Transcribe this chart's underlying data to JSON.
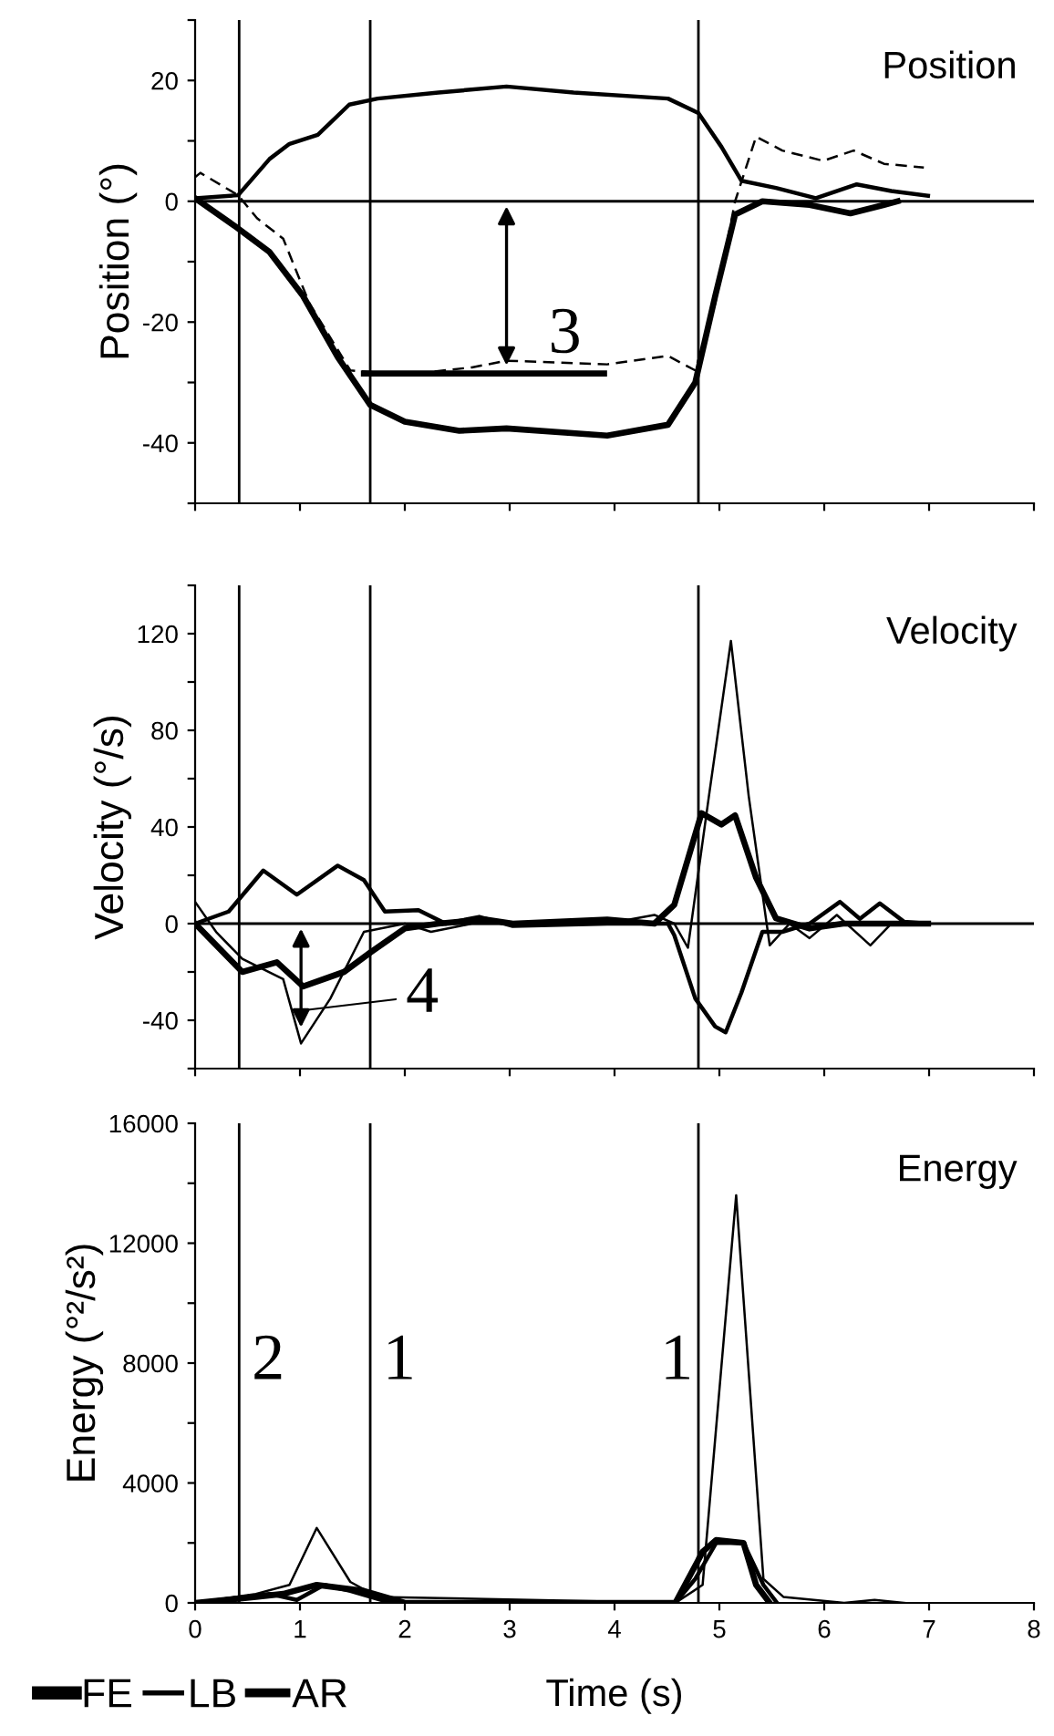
{
  "chart_data": [
    {
      "type": "line",
      "title": "Position",
      "ylabel": "Position (°)",
      "xlim": [
        0,
        8
      ],
      "xticks": [
        {
          "value": 0,
          "label": null
        },
        {
          "value": 1,
          "label": null
        },
        {
          "value": 2,
          "label": null
        },
        {
          "value": 3,
          "label": null
        },
        {
          "value": 4,
          "label": null
        },
        {
          "value": 5,
          "label": null
        },
        {
          "value": 6,
          "label": null
        },
        {
          "value": 7,
          "label": null
        },
        {
          "value": 8,
          "label": null
        }
      ],
      "ylim": [
        -50,
        30
      ],
      "yticks": [
        {
          "value": -50,
          "label": null
        },
        -40,
        {
          "value": -30,
          "label": null
        },
        -20,
        {
          "value": -10,
          "label": null
        },
        0,
        {
          "value": 10,
          "label": null
        },
        20,
        {
          "value": 30,
          "label": null
        }
      ],
      "tick_labels": "y",
      "grid": false,
      "legend": false,
      "series": [
        {
          "color": "#000000",
          "line_style": "solid",
          "x": [
            0,
            0.41,
            0.71,
            1.03,
            1.36,
            1.67,
            2.0,
            2.52,
            2.97,
            3.93,
            4.51,
            4.77,
            4.96,
            5.15,
            5.41,
            5.86,
            6.25,
            6.57,
            6.7
          ],
          "values": [
            0.5,
            -4.5,
            -8.4,
            -15.7,
            -25.8,
            -33.7,
            -36.5,
            -38,
            -37.6,
            -38.8,
            -37,
            -30,
            -15.7,
            -2.2,
            0,
            -0.6,
            -2,
            -0.6,
            0
          ]
        },
        {
          "color": "#000000",
          "line_style": "dashed",
          "x": [
            0,
            0.05,
            0.41,
            0.59,
            0.84,
            1.09,
            1.48,
            2.0,
            2.64,
            2.97,
            3.93,
            4.51,
            4.77,
            4.96,
            5.15,
            5.35,
            5.6,
            5.99,
            6.28,
            6.57,
            6.95
          ],
          "values": [
            4,
            4.7,
            1,
            -2.8,
            -6.2,
            -16.9,
            -28,
            -28.7,
            -27.5,
            -26.4,
            -27,
            -25.6,
            -28,
            -16.9,
            0,
            10.7,
            8.4,
            6.7,
            8.4,
            6.2,
            5.6
          ]
        },
        {
          "color": "#000000",
          "line_style": "solid",
          "x": [
            0,
            0.41,
            0.71,
            0.9,
            1.17,
            1.47,
            1.74,
            2.32,
            2.97,
            3.61,
            4.51,
            4.8,
            5.02,
            5.21,
            5.54,
            5.92,
            6.31,
            6.64,
            6.99
          ],
          "values": [
            0.5,
            1,
            7,
            9.5,
            11,
            16,
            17,
            18,
            19,
            18,
            17,
            14.6,
            9,
            3.4,
            2.2,
            0.5,
            2.8,
            1.7,
            0.9
          ]
        },
        {
          "color": "#000000",
          "line_style": "solid",
          "x": [
            1.61,
            3.9
          ],
          "values": [
            -28.5,
            -28.5
          ]
        }
      ],
      "ref_lines": [
        {
          "axis": "y",
          "value": 0
        },
        {
          "axis": "x",
          "value": 0.42
        },
        {
          "axis": "x",
          "value": 1.67
        },
        {
          "axis": "x",
          "value": 4.8
        }
      ],
      "annotations": [
        {
          "text": "3",
          "x": 2.97,
          "y": -28
        }
      ]
    },
    {
      "type": "line",
      "title": "Velocity",
      "ylabel": "Velocity (°/s)",
      "xlim": [
        0,
        8
      ],
      "xticks": [
        {
          "value": 0,
          "label": null
        },
        {
          "value": 1,
          "label": null
        },
        {
          "value": 2,
          "label": null
        },
        {
          "value": 3,
          "label": null
        },
        {
          "value": 4,
          "label": null
        },
        {
          "value": 5,
          "label": null
        },
        {
          "value": 6,
          "label": null
        },
        {
          "value": 7,
          "label": null
        },
        {
          "value": 8,
          "label": null
        }
      ],
      "ylim": [
        -60,
        140
      ],
      "yticks": [
        {
          "value": -60,
          "label": null
        },
        -40,
        {
          "value": -20,
          "label": null
        },
        0,
        {
          "value": 20,
          "label": null
        },
        40,
        {
          "value": 60,
          "label": null
        },
        80,
        {
          "value": 100,
          "label": null
        },
        120,
        {
          "value": 140,
          "label": null
        }
      ],
      "tick_labels": "y",
      "grid": false,
      "legend": false,
      "series": [
        {
          "color": "#000000",
          "line_style": "solid",
          "x": [
            0,
            0.45,
            0.78,
            1.03,
            1.42,
            1.67,
            2.0,
            2.32,
            2.77,
            3.03,
            3.93,
            4.38,
            4.57,
            4.83,
            5.02,
            5.15,
            5.35,
            5.54,
            5.86,
            6.18,
            6.99
          ],
          "values": [
            0,
            -20,
            -16,
            -26,
            -20,
            -12,
            -2,
            0,
            1.7,
            0,
            1.7,
            0,
            7.8,
            45.7,
            41,
            44.8,
            19,
            2.2,
            -2,
            0,
            0
          ]
        },
        {
          "color": "#000000",
          "line_style": "solid",
          "x": [
            0,
            0.2,
            0.45,
            0.84,
            1.01,
            1.29,
            1.61,
            2.0,
            2.25,
            2.64,
            3.93,
            4.38,
            4.57,
            4.7,
            4.9,
            5.11,
            5.28,
            5.48,
            5.67,
            5.86,
            6.12,
            6.44,
            6.64,
            6.95
          ],
          "values": [
            9,
            -3.4,
            -14.6,
            -23,
            -49.6,
            -31,
            -3.4,
            0,
            -3.4,
            0,
            0,
            3.6,
            0,
            -10,
            52.7,
            117,
            52.7,
            -9,
            0,
            -6,
            3.6,
            -9,
            0,
            0
          ]
        },
        {
          "color": "#000000",
          "line_style": "solid",
          "x": [
            0,
            0.32,
            0.65,
            0.97,
            1.36,
            1.61,
            1.81,
            2.13,
            2.39,
            2.71,
            3.03,
            3.93,
            4.51,
            4.57,
            4.77,
            4.96,
            5.06,
            5.21,
            5.41,
            5.6,
            5.86,
            6.15,
            6.34,
            6.53,
            6.76,
            6.99
          ],
          "values": [
            0,
            5,
            22,
            12,
            24,
            18,
            5,
            5.6,
            0,
            2.8,
            -1,
            0,
            0,
            -4.8,
            -31,
            -42.6,
            -45,
            -28.6,
            -3.4,
            -3.4,
            0,
            9,
            2,
            8.4,
            0.8,
            0
          ]
        }
      ],
      "ref_lines": [
        {
          "axis": "y",
          "value": 0
        },
        {
          "axis": "x",
          "value": 0.42
        },
        {
          "axis": "x",
          "value": 1.67
        },
        {
          "axis": "x",
          "value": 4.8
        }
      ],
      "annotations": [
        {
          "text": "4",
          "x": 1.01,
          "y": -45
        }
      ]
    },
    {
      "type": "line",
      "title": "Energy",
      "ylabel": "Energy (°²/s²)",
      "xlabel": "Time (s)",
      "xlim": [
        0,
        8
      ],
      "xticks": [
        0,
        1,
        2,
        3,
        4,
        5,
        6,
        7,
        8
      ],
      "ylim": [
        0,
        16000
      ],
      "yticks": [
        0,
        {
          "value": 2000,
          "label": null
        },
        4000,
        {
          "value": 6000,
          "label": null
        },
        8000,
        {
          "value": 10000,
          "label": null
        },
        12000,
        {
          "value": 14000,
          "label": null
        },
        16000
      ],
      "grid": false,
      "legend": "bottom left",
      "series": [
        {
          "name": "FE",
          "color": "#000000",
          "line_style": "solid",
          "x": [
            0,
            0.58,
            0.84,
            1.16,
            1.61,
            2.0,
            4.58,
            4.84,
            4.97,
            5.23,
            5.35,
            5.48
          ],
          "values": [
            0,
            200,
            300,
            600,
            400,
            0,
            0,
            1700,
            2100,
            2000,
            600,
            0
          ]
        },
        {
          "name": "LB",
          "color": "#000000",
          "line_style": "solid",
          "x": [
            0,
            0.58,
            0.9,
            1.16,
            1.48,
            1.74,
            4.58,
            4.84,
            5.16,
            5.42,
            5.61,
            6.19,
            6.48,
            6.77
          ],
          "values": [
            0,
            300,
            600,
            2500,
            700,
            200,
            0,
            600,
            13600,
            800,
            200,
            0,
            100,
            0
          ]
        },
        {
          "name": "AR",
          "color": "#000000",
          "line_style": "solid",
          "x": [
            0,
            0.71,
            0.97,
            1.23,
            1.48,
            1.87,
            4.58,
            4.77,
            4.97,
            5.23,
            5.42,
            5.55
          ],
          "values": [
            0,
            300,
            100,
            600,
            400,
            0,
            0,
            800,
            2000,
            2000,
            600,
            0
          ]
        }
      ],
      "ref_lines": [
        {
          "axis": "x",
          "value": 0.42
        },
        {
          "axis": "x",
          "value": 1.67
        },
        {
          "axis": "x",
          "value": 4.8
        }
      ],
      "annotations": [
        {
          "text": "2",
          "x": 0.42,
          "y": 7000
        },
        {
          "text": "1",
          "x": 1.67,
          "y": 7000
        },
        {
          "text": "1",
          "x": 4.8,
          "y": 7000
        }
      ]
    }
  ]
}
